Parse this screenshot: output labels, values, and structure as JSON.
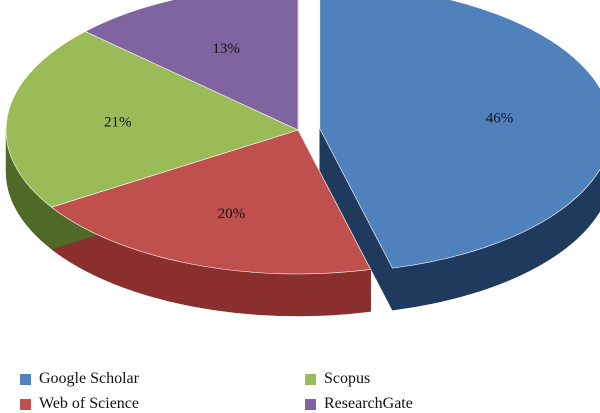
{
  "chart_data": {
    "type": "pie",
    "style": "3d-exploded",
    "categories": [
      "Google Scholar",
      "Web of Science",
      "Scopus",
      "ResearchGate"
    ],
    "values": [
      46,
      20,
      21,
      13
    ],
    "value_labels": [
      "46%",
      "20%",
      "21%",
      "13%"
    ],
    "colors": [
      "#4f81bd",
      "#c0504d",
      "#9bbb59",
      "#8064a2"
    ],
    "side_colors": [
      "#1f3a5c",
      "#8a2f2d",
      "#4f6a26",
      "#4b3a6a"
    ],
    "exploded": [
      "Google Scholar"
    ],
    "title": "",
    "legend_position": "bottom"
  }
}
